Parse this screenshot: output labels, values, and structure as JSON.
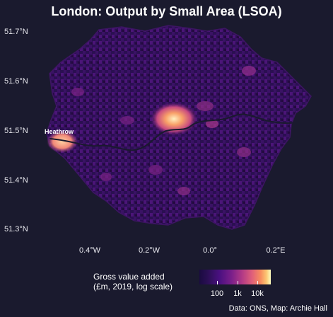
{
  "title": "London: Output by Small Area (LSOA)",
  "axes": {
    "lat_ticks": [
      "51.7°N",
      "51.6°N",
      "51.5°N",
      "51.4°N",
      "51.3°N"
    ],
    "lon_ticks": [
      "0.4°W",
      "0.2°W",
      "0.0°",
      "0.2°E"
    ]
  },
  "annotations": {
    "heathrow": "Heathrow"
  },
  "legend": {
    "title_line1": "Gross value added",
    "title_line2": "(£m, 2019, log scale)",
    "ticks": [
      "100",
      "1k",
      "10k"
    ],
    "scale": "log",
    "palette": [
      "#1a0b40",
      "#4a1080",
      "#b23a86",
      "#f88e5e",
      "#fcfdbf"
    ]
  },
  "source": "Data: ONS, Map: Archie Hall",
  "colors": {
    "background": "#1a1a2e",
    "low_output": "#2a0f4f",
    "high_output": "#fcfdbf",
    "thames": "#1a1a2e"
  }
}
